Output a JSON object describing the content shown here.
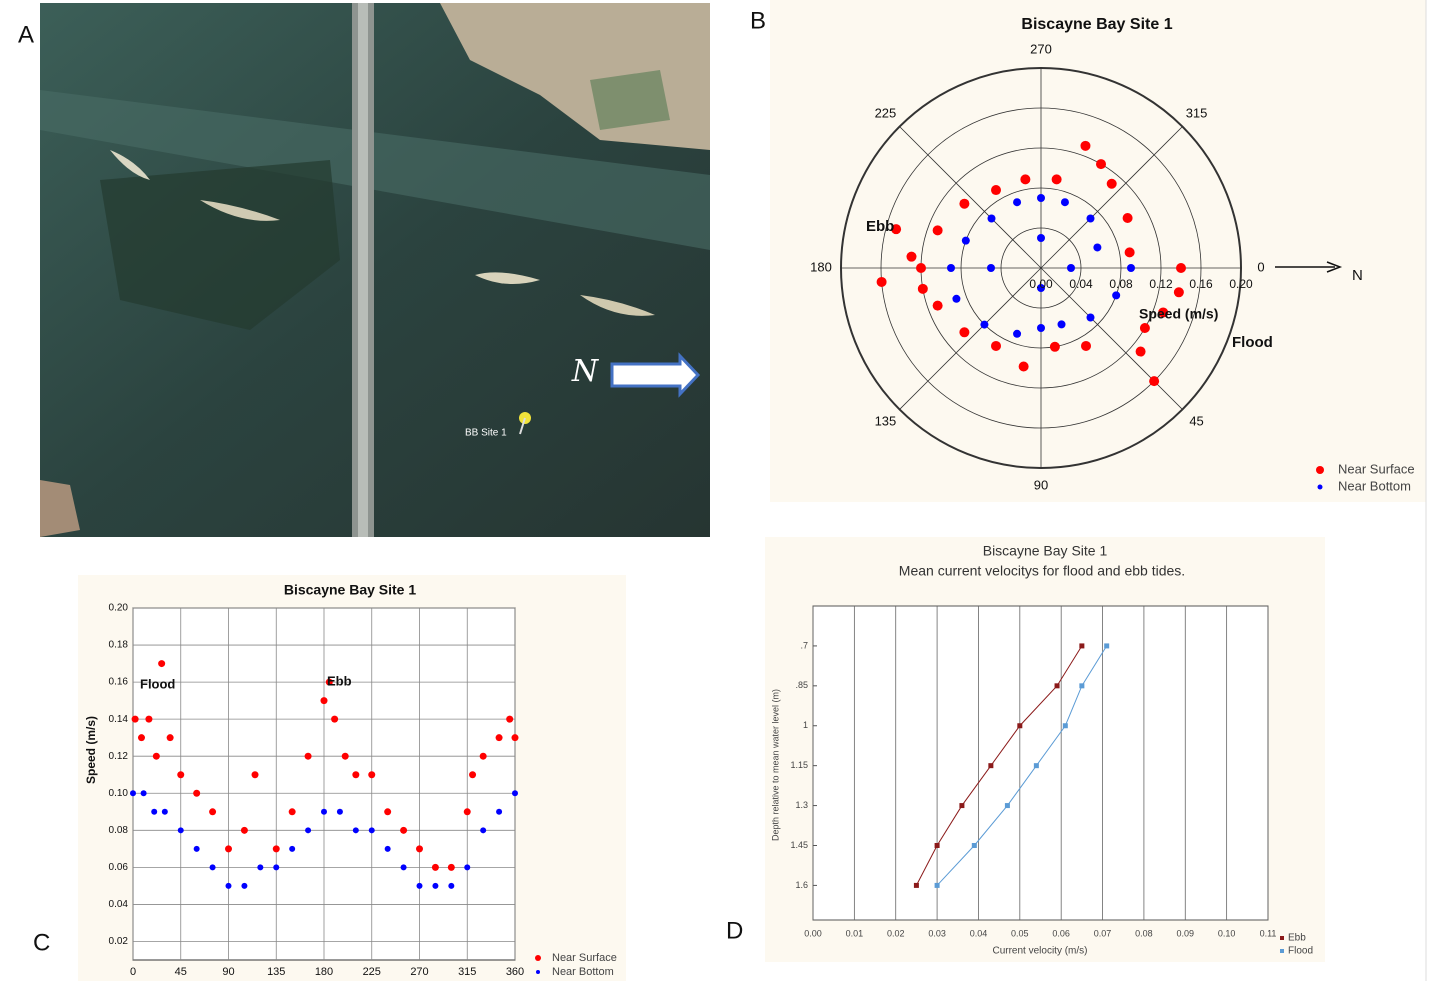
{
  "panel_labels": [
    "A",
    "B",
    "C",
    "D"
  ],
  "map": {
    "site_label": "BB Site 1",
    "north_label": "N"
  },
  "chart_data": [
    {
      "type": "polar_scatter",
      "title": "Biscayne Bay Site 1",
      "rlim": [
        0,
        0.2
      ],
      "rticks": [
        {
          "value": 0,
          "label": "0.00"
        },
        {
          "value": 0.04,
          "label": "0.04"
        },
        {
          "value": 0.08,
          "label": "0.08"
        },
        {
          "value": 0.12,
          "label": "0.12"
        },
        {
          "value": 0.16,
          "label": "0.16"
        },
        {
          "value": 0.2,
          "label": "0.20"
        }
      ],
      "thetaticks": [
        0,
        45,
        90,
        135,
        180,
        225,
        270,
        315
      ],
      "grid": true,
      "legend": "lower right",
      "annotations": {
        "ebb": "Ebb",
        "flood": "Flood",
        "r_label": "Speed (m/s)",
        "north": "N"
      },
      "series": [
        {
          "name": "Near Surface",
          "color": "#ff0000",
          "theta": [
            180,
            185,
            170,
            195,
            200,
            220,
            240,
            260,
            280,
            300,
            310,
            330,
            350,
            0,
            10,
            20,
            30,
            40,
            60,
            80,
            100,
            120,
            140,
            160,
            175,
            290,
            45
          ],
          "values": [
            0.12,
            0.13,
            0.12,
            0.15,
            0.11,
            0.1,
            0.09,
            0.09,
            0.09,
            0.12,
            0.11,
            0.1,
            0.09,
            0.14,
            0.14,
            0.13,
            0.12,
            0.13,
            0.09,
            0.08,
            0.1,
            0.09,
            0.1,
            0.11,
            0.16,
            0.13,
            0.16
          ]
        },
        {
          "name": "Near Bottom",
          "color": "#0000ff",
          "theta": [
            180,
            200,
            225,
            250,
            270,
            290,
            315,
            340,
            0,
            20,
            45,
            70,
            90,
            110,
            135,
            160,
            0,
            90,
            180,
            270
          ],
          "values": [
            0.09,
            0.08,
            0.07,
            0.07,
            0.07,
            0.07,
            0.07,
            0.06,
            0.09,
            0.08,
            0.07,
            0.06,
            0.06,
            0.07,
            0.08,
            0.09,
            0.03,
            0.02,
            0.05,
            0.03
          ]
        }
      ]
    },
    {
      "type": "scatter",
      "title": "Biscayne Bay Site 1",
      "ylabel": "Speed (m/s)",
      "xlim": [
        0,
        360
      ],
      "xticks": [
        0,
        45,
        90,
        135,
        180,
        225,
        270,
        315,
        360
      ],
      "ylim": [
        0.01,
        0.2
      ],
      "yticks": [
        {
          "value": 0.02,
          "label": "0.02"
        },
        {
          "value": 0.04,
          "label": "0.04"
        },
        {
          "value": 0.06,
          "label": "0.06"
        },
        {
          "value": 0.08,
          "label": "0.08"
        },
        {
          "value": 0.1,
          "label": "0.10"
        },
        {
          "value": 0.12,
          "label": "0.12"
        },
        {
          "value": 0.14,
          "label": "0.14"
        },
        {
          "value": 0.16,
          "label": "0.16"
        },
        {
          "value": 0.18,
          "label": "0.18"
        },
        {
          "value": 0.2,
          "label": "0.20"
        }
      ],
      "grid": true,
      "legend": "lower right",
      "annotations": {
        "flood": "Flood",
        "ebb": "Ebb"
      },
      "series": [
        {
          "name": "Near Surface",
          "color": "#ff0000",
          "x": [
            2,
            8,
            15,
            22,
            27,
            35,
            45,
            60,
            75,
            90,
            105,
            115,
            135,
            150,
            165,
            180,
            185,
            190,
            200,
            210,
            225,
            240,
            255,
            270,
            285,
            300,
            315,
            320,
            330,
            345,
            355,
            360
          ],
          "values": [
            0.14,
            0.13,
            0.14,
            0.12,
            0.17,
            0.13,
            0.11,
            0.1,
            0.09,
            0.07,
            0.08,
            0.11,
            0.07,
            0.09,
            0.12,
            0.15,
            0.16,
            0.14,
            0.12,
            0.11,
            0.11,
            0.09,
            0.08,
            0.07,
            0.06,
            0.06,
            0.09,
            0.11,
            0.12,
            0.13,
            0.14,
            0.13
          ]
        },
        {
          "name": "Near Bottom",
          "color": "#0000ff",
          "x": [
            0,
            10,
            20,
            30,
            45,
            60,
            75,
            90,
            105,
            120,
            135,
            150,
            165,
            180,
            195,
            210,
            225,
            240,
            255,
            270,
            285,
            300,
            315,
            330,
            345,
            360
          ],
          "values": [
            0.1,
            0.1,
            0.09,
            0.09,
            0.08,
            0.07,
            0.06,
            0.05,
            0.05,
            0.06,
            0.06,
            0.07,
            0.08,
            0.09,
            0.09,
            0.08,
            0.08,
            0.07,
            0.06,
            0.05,
            0.05,
            0.05,
            0.06,
            0.08,
            0.09,
            0.1
          ]
        }
      ]
    },
    {
      "type": "line",
      "title": "Biscayne Bay Site 1",
      "subtitle": "Mean current velocitys for flood and ebb tides.",
      "xlabel": "Current velocity (m/s)",
      "ylabel": "Depth relative to mean water level (m)",
      "xlim": [
        0,
        0.11
      ],
      "xticks": [
        {
          "value": 0,
          "label": "0.00"
        },
        {
          "value": 0.01,
          "label": "0.01"
        },
        {
          "value": 0.02,
          "label": "0.02"
        },
        {
          "value": 0.03,
          "label": "0.03"
        },
        {
          "value": 0.04,
          "label": "0.04"
        },
        {
          "value": 0.05,
          "label": "0.05"
        },
        {
          "value": 0.06,
          "label": "0.06"
        },
        {
          "value": 0.07,
          "label": "0.07"
        },
        {
          "value": 0.08,
          "label": "0.08"
        },
        {
          "value": 0.09,
          "label": "0.09"
        },
        {
          "value": 0.1,
          "label": "0.10"
        },
        {
          "value": 0.11,
          "label": "0.11"
        }
      ],
      "ylim": [
        1.73,
        0.55
      ],
      "yticks": [
        {
          "value": 0.7,
          "label": ".7"
        },
        {
          "value": 0.85,
          "label": ".85"
        },
        1,
        1.15,
        1.3,
        1.45,
        1.6
      ],
      "grid": "x",
      "legend": "lower right",
      "series": [
        {
          "name": "Ebb",
          "color": "#8b1a1a",
          "x": [
            0.065,
            0.059,
            0.05,
            0.043,
            0.036,
            0.03,
            0.025
          ],
          "values": [
            0.7,
            0.85,
            1,
            1.15,
            1.3,
            1.45,
            1.6
          ]
        },
        {
          "name": "Flood",
          "color": "#5b9bd5",
          "x": [
            0.071,
            0.065,
            0.061,
            0.054,
            0.047,
            0.039,
            0.03
          ],
          "values": [
            0.7,
            0.85,
            1,
            1.15,
            1.3,
            1.45,
            1.6
          ]
        }
      ]
    }
  ]
}
